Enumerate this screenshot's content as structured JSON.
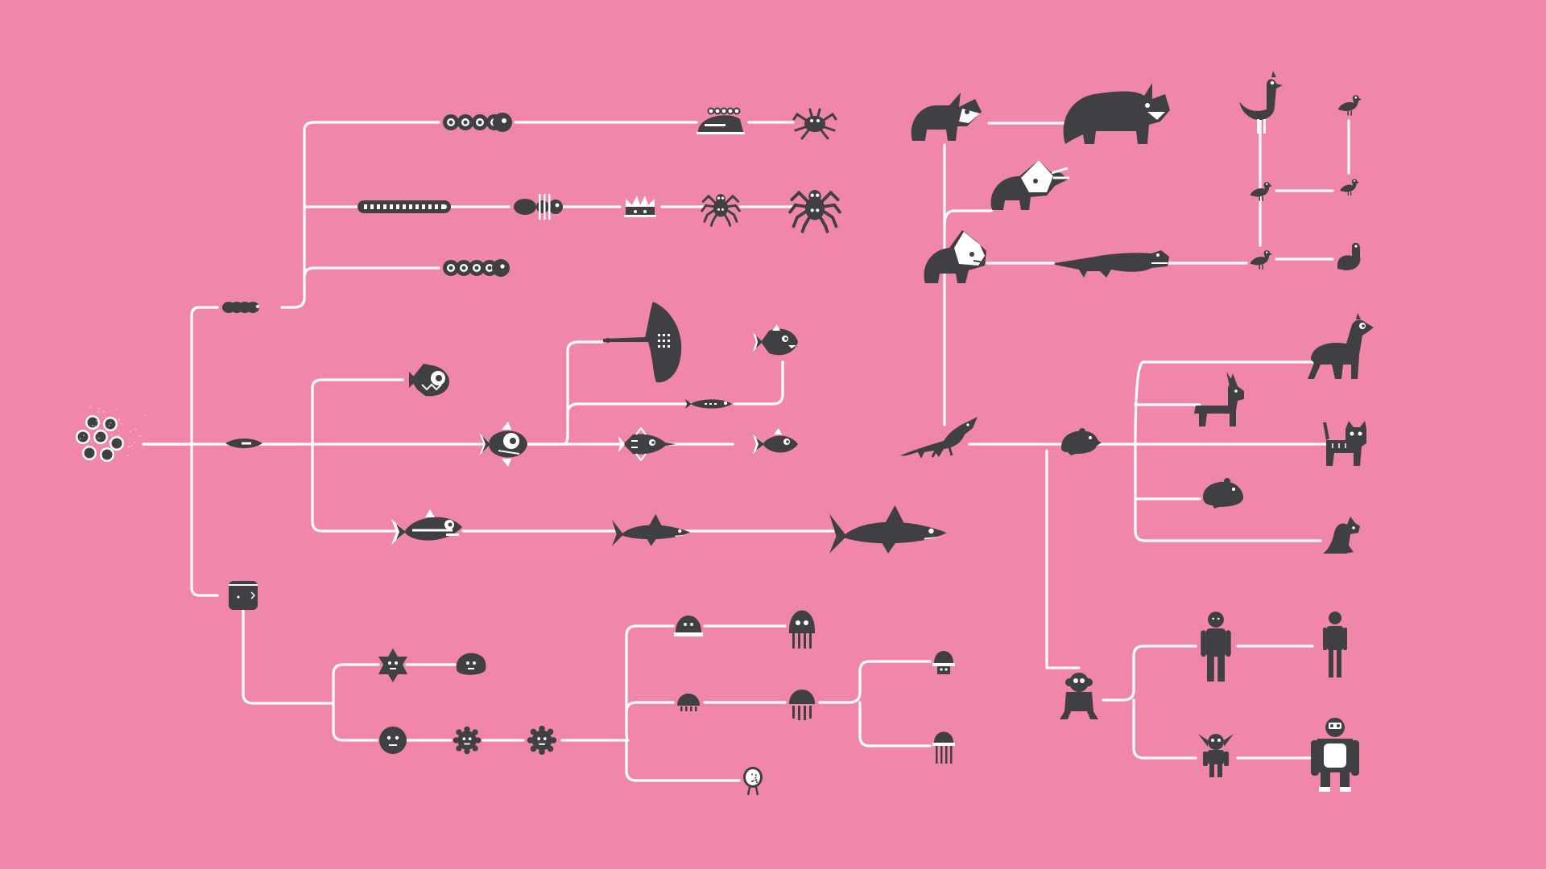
{
  "colors": {
    "background": "#f087a8",
    "connector": "#ffffff",
    "creature": "#3f3f44",
    "creature_detail": "#ffffff"
  },
  "diagram": {
    "kind": "evolution tree of pictogram creatures",
    "text_labels": "none",
    "nodes": [
      {
        "id": "origin-cells",
        "icon": "cell-cluster-icon"
      },
      {
        "id": "segmented-worm",
        "icon": "worm-icon",
        "parent": "origin-cells"
      },
      {
        "id": "round-worm-top",
        "icon": "round-worm-icon",
        "parent": "segmented-worm"
      },
      {
        "id": "slug",
        "icon": "slug-icon",
        "parent": "round-worm-top"
      },
      {
        "id": "small-crab",
        "icon": "crab-icon",
        "parent": "slug"
      },
      {
        "id": "millipede",
        "icon": "millipede-icon",
        "parent": "segmented-worm"
      },
      {
        "id": "ant",
        "icon": "ant-icon",
        "parent": "millipede"
      },
      {
        "id": "crown-bug",
        "icon": "crown-bug-icon",
        "parent": "ant"
      },
      {
        "id": "small-spider",
        "icon": "spider-icon",
        "parent": "crown-bug"
      },
      {
        "id": "big-spider",
        "icon": "spider-icon",
        "parent": "small-spider"
      },
      {
        "id": "round-worm-bottom",
        "icon": "round-worm-icon",
        "parent": "segmented-worm"
      },
      {
        "id": "proto-fish",
        "icon": "proto-fish-icon",
        "parent": "origin-cells"
      },
      {
        "id": "spiky-fish",
        "icon": "fish-icon",
        "parent": "proto-fish"
      },
      {
        "id": "round-fish",
        "icon": "fish-icon",
        "parent": "proto-fish"
      },
      {
        "id": "manta-ray",
        "icon": "manta-ray-icon",
        "parent": "round-fish"
      },
      {
        "id": "eel",
        "icon": "eel-icon",
        "parent": "round-fish"
      },
      {
        "id": "piranha",
        "icon": "fish-icon",
        "parent": "eel"
      },
      {
        "id": "needle-fish",
        "icon": "fish-icon",
        "parent": "round-fish"
      },
      {
        "id": "small-fish",
        "icon": "fish-icon",
        "parent": "needle-fish"
      },
      {
        "id": "lizard",
        "icon": "lizard-icon",
        "parent": "small-fish"
      },
      {
        "id": "striped-fish",
        "icon": "fish-icon",
        "parent": "proto-fish"
      },
      {
        "id": "small-shark",
        "icon": "shark-icon",
        "parent": "striped-fish"
      },
      {
        "id": "big-shark",
        "icon": "shark-icon",
        "parent": "small-shark"
      },
      {
        "id": "triceratops-small",
        "icon": "dinosaur-icon",
        "parent": "lizard"
      },
      {
        "id": "rhino",
        "icon": "rhino-icon",
        "parent": "triceratops-small"
      },
      {
        "id": "triceratops-frill",
        "icon": "dinosaur-icon",
        "parent": "triceratops-small"
      },
      {
        "id": "triceratops-mid",
        "icon": "dinosaur-icon",
        "parent": "triceratops-small"
      },
      {
        "id": "crocodile",
        "icon": "crocodile-icon",
        "parent": "triceratops-mid"
      },
      {
        "id": "small-bird-low",
        "icon": "bird-icon",
        "parent": "crocodile"
      },
      {
        "id": "duck",
        "icon": "bird-icon",
        "parent": "small-bird-low"
      },
      {
        "id": "small-bird-mid",
        "icon": "bird-icon",
        "parent": "small-bird-low"
      },
      {
        "id": "small-bird-right",
        "icon": "bird-icon",
        "parent": "small-bird-mid"
      },
      {
        "id": "tall-bird",
        "icon": "bird-icon",
        "parent": "small-bird-mid"
      },
      {
        "id": "top-right-bird",
        "icon": "bird-icon",
        "parent": "small-bird-right"
      },
      {
        "id": "rodent",
        "icon": "rodent-icon",
        "parent": "lizard"
      },
      {
        "id": "llama",
        "icon": "llama-icon",
        "parent": "rodent"
      },
      {
        "id": "donkey",
        "icon": "donkey-icon",
        "parent": "rodent"
      },
      {
        "id": "cat",
        "icon": "cat-icon",
        "parent": "rodent"
      },
      {
        "id": "hamster",
        "icon": "hamster-icon",
        "parent": "rodent"
      },
      {
        "id": "kangaroo",
        "icon": "kangaroo-icon",
        "parent": "rodent"
      },
      {
        "id": "monkey",
        "icon": "monkey-icon",
        "parent": "rodent"
      },
      {
        "id": "bigfoot",
        "icon": "ape-icon",
        "parent": "monkey"
      },
      {
        "id": "human",
        "icon": "human-icon",
        "parent": "bigfoot"
      },
      {
        "id": "goblin",
        "icon": "goblin-icon",
        "parent": "monkey"
      },
      {
        "id": "gorilla",
        "icon": "gorilla-icon",
        "parent": "goblin"
      },
      {
        "id": "sponge",
        "icon": "sponge-icon",
        "parent": "origin-cells"
      },
      {
        "id": "star-blob",
        "icon": "star-blob-icon",
        "parent": "sponge"
      },
      {
        "id": "blob",
        "icon": "blob-icon",
        "parent": "star-blob"
      },
      {
        "id": "round-face",
        "icon": "face-blob-icon",
        "parent": "sponge"
      },
      {
        "id": "spiky-ball-1",
        "icon": "spiky-ball-icon",
        "parent": "round-face"
      },
      {
        "id": "spiky-ball-2",
        "icon": "spiky-ball-icon",
        "parent": "spiky-ball-1"
      },
      {
        "id": "dome-jelly",
        "icon": "jellyfish-icon",
        "parent": "spiky-ball-2"
      },
      {
        "id": "squid",
        "icon": "squid-icon",
        "parent": "dome-jelly"
      },
      {
        "id": "small-jelly",
        "icon": "jellyfish-icon",
        "parent": "spiky-ball-2"
      },
      {
        "id": "medium-jelly",
        "icon": "jellyfish-icon",
        "parent": "small-jelly"
      },
      {
        "id": "bell-jelly",
        "icon": "jellyfish-icon",
        "parent": "medium-jelly"
      },
      {
        "id": "tall-jelly",
        "icon": "jellyfish-icon",
        "parent": "medium-jelly"
      },
      {
        "id": "egg-creature",
        "icon": "egg-creature-icon",
        "parent": "spiky-ball-2"
      }
    ]
  }
}
